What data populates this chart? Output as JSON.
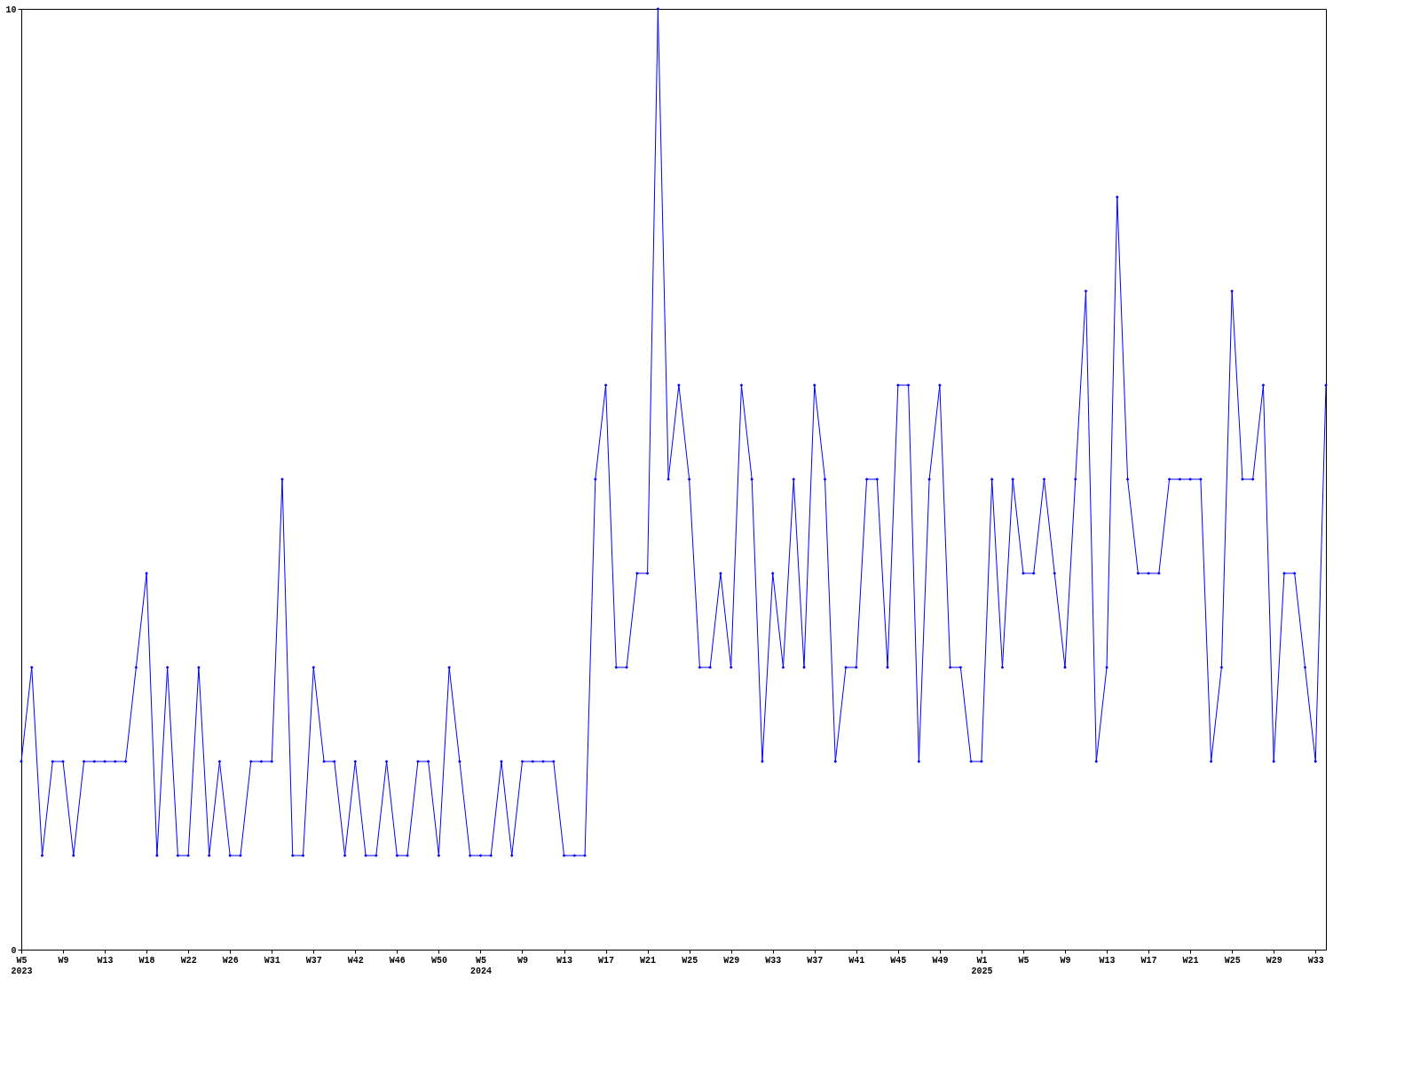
{
  "chart_data": {
    "type": "line",
    "categories": [
      "W5\n2023",
      null,
      null,
      null,
      "W9",
      null,
      null,
      null,
      "W13",
      null,
      null,
      null,
      "W18",
      null,
      null,
      null,
      "W22",
      null,
      null,
      null,
      "W26",
      null,
      null,
      null,
      "W31",
      null,
      null,
      null,
      "W37",
      null,
      null,
      null,
      "W42",
      null,
      null,
      null,
      "W46",
      null,
      null,
      null,
      "W50",
      null,
      null,
      null,
      "W5\n2024",
      null,
      null,
      null,
      "W9",
      null,
      null,
      null,
      "W13",
      null,
      null,
      null,
      "W17",
      null,
      null,
      null,
      "W21",
      null,
      null,
      null,
      "W25",
      null,
      null,
      null,
      "W29",
      null,
      null,
      null,
      "W33",
      null,
      null,
      null,
      "W37",
      null,
      null,
      null,
      "W41",
      null,
      null,
      null,
      "W45",
      null,
      null,
      null,
      "W49",
      null,
      null,
      null,
      "W1\n2025",
      null,
      null,
      null,
      "W5",
      null,
      null,
      null,
      "W9",
      null,
      null,
      null,
      "W13",
      null,
      null,
      null,
      "W17",
      null,
      null,
      null,
      "W21",
      null,
      null,
      null,
      "W25",
      null,
      null,
      null,
      "W29",
      null,
      null,
      null,
      "W33",
      null
    ],
    "series": [
      {
        "color": "#0000ff",
        "values": [
          2,
          3,
          1,
          2,
          2,
          1,
          2,
          2,
          2,
          2,
          2,
          3,
          4,
          1,
          3,
          1,
          1,
          3,
          1,
          2,
          1,
          1,
          2,
          2,
          2,
          5,
          1,
          1,
          3,
          2,
          2,
          1,
          2,
          1,
          1,
          2,
          1,
          1,
          2,
          2,
          1,
          3,
          2,
          1,
          1,
          1,
          2,
          1,
          2,
          2,
          2,
          2,
          1,
          1,
          1,
          5,
          6,
          3,
          3,
          4,
          4,
          10,
          5,
          6,
          5,
          3,
          3,
          4,
          3,
          6,
          5,
          2,
          4,
          3,
          5,
          3,
          6,
          5,
          2,
          3,
          3,
          5,
          5,
          3,
          6,
          6,
          2,
          5,
          6,
          3,
          3,
          2,
          2,
          5,
          3,
          5,
          4,
          4,
          5,
          4,
          3,
          5,
          7,
          2,
          3,
          8,
          5,
          4,
          4,
          4,
          5,
          5,
          5,
          5,
          2,
          3,
          7,
          5,
          5,
          6,
          2,
          4,
          4,
          3,
          2,
          6
        ]
      }
    ],
    "ylim": [
      0,
      10
    ],
    "yticks": [
      0,
      10
    ],
    "grid": false,
    "marker": "diamond",
    "line_style": "solid"
  }
}
